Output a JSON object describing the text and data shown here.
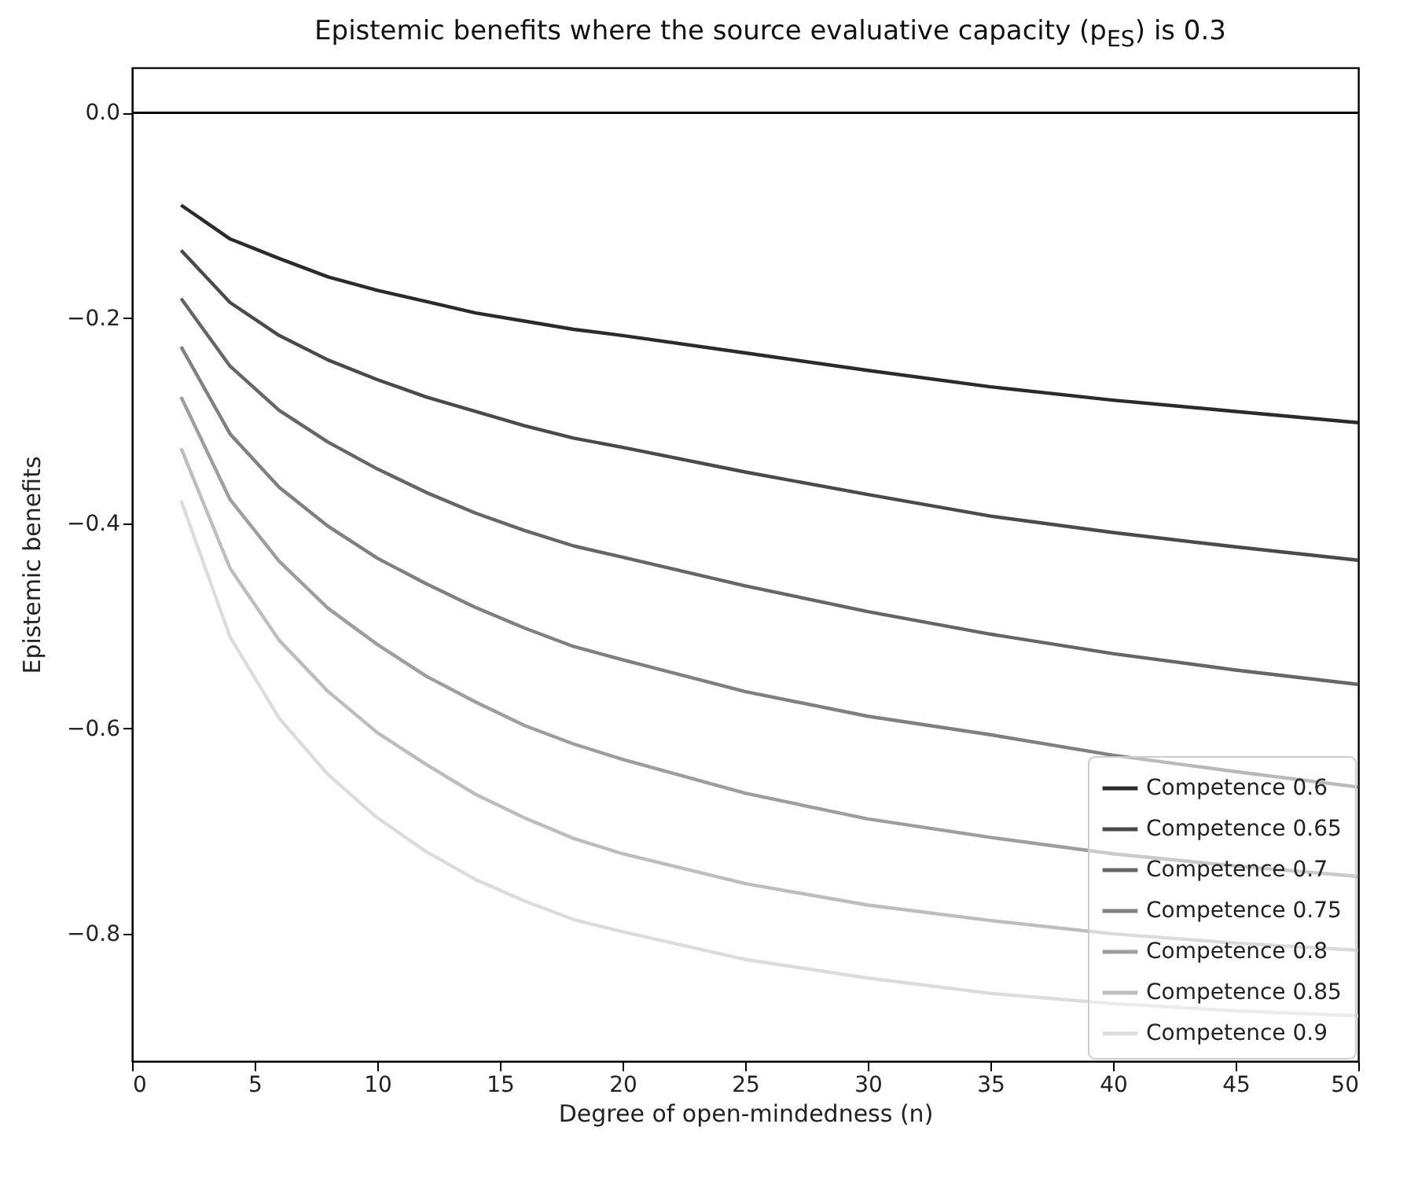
{
  "chart_data": {
    "type": "line",
    "title": "Epistemic benefits where the source evaluative capacity (p$_{ES}$) is 0.3",
    "xlabel": "Degree of open-mindedness (n)",
    "ylabel": "Epistemic benefits",
    "x": [
      2,
      4,
      6,
      8,
      10,
      12,
      14,
      16,
      18,
      20,
      25,
      30,
      35,
      40,
      45,
      50
    ],
    "series": [
      {
        "name": "Competence 0.6",
        "color": "#2b2b2b",
        "values": [
          -0.09,
          -0.123,
          -0.142,
          -0.16,
          -0.173,
          -0.184,
          -0.195,
          -0.203,
          -0.211,
          -0.217,
          -0.234,
          -0.251,
          -0.267,
          -0.28,
          -0.291,
          -0.302
        ]
      },
      {
        "name": "Competence 0.65",
        "color": "#4a4a4a",
        "values": [
          -0.134,
          -0.185,
          -0.217,
          -0.241,
          -0.26,
          -0.277,
          -0.291,
          -0.305,
          -0.317,
          -0.326,
          -0.35,
          -0.372,
          -0.393,
          -0.409,
          -0.423,
          -0.436
        ]
      },
      {
        "name": "Competence 0.7",
        "color": "#666666",
        "values": [
          -0.181,
          -0.247,
          -0.29,
          -0.321,
          -0.347,
          -0.37,
          -0.39,
          -0.407,
          -0.422,
          -0.433,
          -0.461,
          -0.486,
          -0.508,
          -0.527,
          -0.543,
          -0.557
        ]
      },
      {
        "name": "Competence 0.75",
        "color": "#808080",
        "values": [
          -0.228,
          -0.313,
          -0.365,
          -0.403,
          -0.434,
          -0.459,
          -0.482,
          -0.502,
          -0.52,
          -0.533,
          -0.564,
          -0.588,
          -0.606,
          -0.626,
          -0.642,
          -0.657
        ]
      },
      {
        "name": "Competence 0.8",
        "color": "#9e9e9e",
        "values": [
          -0.277,
          -0.377,
          -0.437,
          -0.483,
          -0.518,
          -0.549,
          -0.574,
          -0.597,
          -0.615,
          -0.63,
          -0.663,
          -0.688,
          -0.706,
          -0.722,
          -0.734,
          -0.744
        ]
      },
      {
        "name": "Competence 0.85",
        "color": "#bdbdbd",
        "values": [
          -0.327,
          -0.444,
          -0.514,
          -0.564,
          -0.604,
          -0.635,
          -0.664,
          -0.687,
          -0.707,
          -0.722,
          -0.751,
          -0.772,
          -0.787,
          -0.8,
          -0.809,
          -0.816
        ]
      },
      {
        "name": "Competence 0.9",
        "color": "#dcdcdc",
        "values": [
          -0.378,
          -0.511,
          -0.59,
          -0.645,
          -0.687,
          -0.72,
          -0.747,
          -0.768,
          -0.786,
          -0.798,
          -0.825,
          -0.843,
          -0.858,
          -0.868,
          -0.875,
          -0.88
        ]
      }
    ],
    "xlim": [
      0,
      50
    ],
    "ylim": [
      -0.924,
      0.044
    ],
    "xticks": [
      0,
      5,
      10,
      15,
      20,
      25,
      30,
      35,
      40,
      45,
      50
    ],
    "yticks": [
      {
        "value": -0.8,
        "label": "−0.8"
      },
      {
        "value": -0.6,
        "label": "−0.6"
      },
      {
        "value": -0.4,
        "label": "−0.4"
      },
      {
        "value": -0.2,
        "label": "−0.2"
      },
      {
        "value": 0,
        "label": "0.0"
      }
    ],
    "ref_lines": [
      {
        "axis": "y",
        "value": 0,
        "color": "#000000"
      }
    ],
    "legend": "bottom right"
  }
}
